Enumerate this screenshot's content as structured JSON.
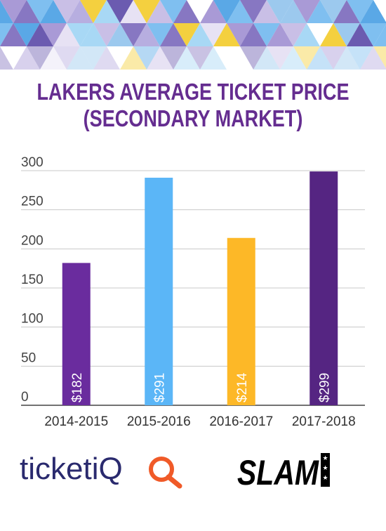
{
  "title": {
    "line1": "LAKERS AVERAGE TICKET PRICE",
    "line2": "(SECONDARY MARKET)"
  },
  "chart_data": {
    "type": "bar",
    "title": "LAKERS AVERAGE TICKET PRICE (SECONDARY MARKET)",
    "categories": [
      "2014-2015",
      "2015-2016",
      "2016-2017",
      "2017-2018"
    ],
    "values": [
      182,
      291,
      214,
      299
    ],
    "data_labels": [
      "$182",
      "$291",
      "$214",
      "$299"
    ],
    "bar_colors": [
      "#6a2c9e",
      "#5bb6f7",
      "#fdb827",
      "#552582"
    ],
    "yticks": [
      0,
      50,
      100,
      150,
      200,
      250,
      300
    ],
    "ylim": [
      0,
      300
    ],
    "xlabel": "",
    "ylabel": "",
    "grid": true,
    "legend": "none"
  },
  "logos": {
    "ticketiq": "ticketiQ",
    "slam": "SLAM"
  },
  "colors": {
    "title": "#652d90",
    "ticketiq_text": "#2a2a6e",
    "ticketiq_accent": "#f05a28",
    "grid": "#c8c8c8",
    "axis": "#444444"
  }
}
